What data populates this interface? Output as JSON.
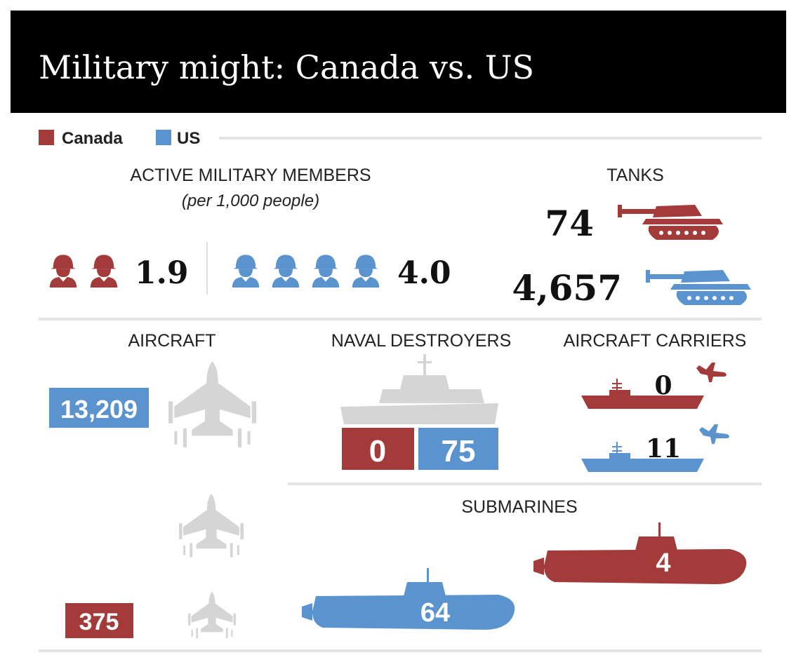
{
  "header": {
    "title": "Military might: Canada vs. US"
  },
  "legend": [
    {
      "label": "Canada",
      "color": "#a23b3a"
    },
    {
      "label": "US",
      "color": "#5b93cf"
    }
  ],
  "panels": {
    "members": {
      "title": "ACTIVE MILITARY MEMBERS",
      "subtitle": "(per 1,000 people)",
      "canada": "1.9",
      "us": "4.0"
    },
    "tanks": {
      "title": "TANKS",
      "canada": "74",
      "us": "4,657"
    },
    "aircraft": {
      "title": "AIRCRAFT",
      "us": "13,209",
      "canada": "375"
    },
    "destroyers": {
      "title": "NAVAL DESTROYERS",
      "canada": "0",
      "us": "75"
    },
    "carriers": {
      "title": "AIRCRAFT CARRIERS",
      "canada": "0",
      "us": "11"
    },
    "submarines": {
      "title": "SUBMARINES",
      "canada": "4",
      "us": "64"
    }
  }
}
